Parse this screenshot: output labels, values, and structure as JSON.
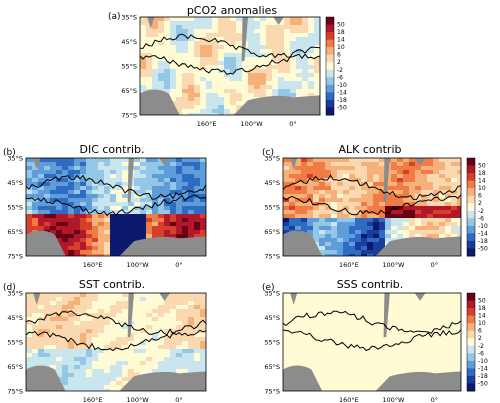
{
  "lat_labels": [
    "35°S",
    "45°S",
    "55°S",
    "65°S",
    "75°S"
  ],
  "lon_labels": [
    "160°E",
    "100°W",
    "0°"
  ],
  "colorbar": {
    "labels": [
      "50",
      "18",
      "14",
      "10",
      "6",
      "2",
      "-2",
      "-6",
      "-10",
      "-14",
      "-18",
      "-50"
    ],
    "colors": [
      "#6a0014",
      "#b2182b",
      "#d6402a",
      "#ef7b45",
      "#f6b07a",
      "#fbd9b0",
      "#fefbd5",
      "#c9e6ef",
      "#94c6e6",
      "#5f9dd8",
      "#2e6cc4",
      "#1a3c9a",
      "#0b1a6d"
    ]
  },
  "panels": [
    {
      "id": "a",
      "label": "(a)",
      "title": "pCO2 anomalies",
      "intensity": 0.35
    },
    {
      "id": "b",
      "label": "(b)",
      "title": "DIC contrib.",
      "intensity": 1.0
    },
    {
      "id": "c",
      "label": "(c)",
      "title": "ALK contrib",
      "intensity": 0.95
    },
    {
      "id": "d",
      "label": "(d)",
      "title": "SST contrib.",
      "intensity": 0.4
    },
    {
      "id": "e",
      "label": "(e)",
      "title": "SSS contrib.",
      "intensity": 0.12
    }
  ]
}
